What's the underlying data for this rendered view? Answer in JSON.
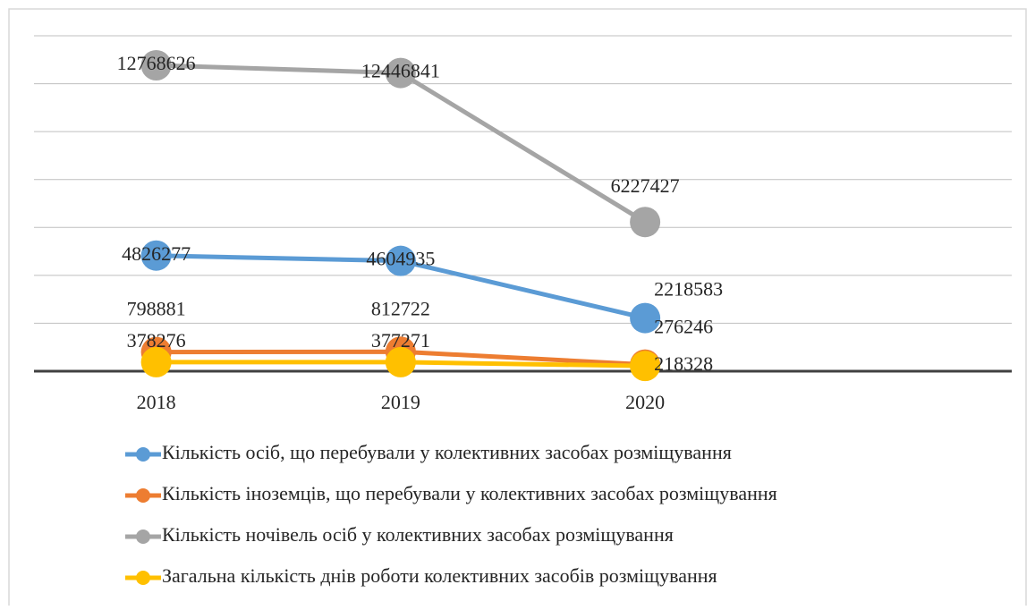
{
  "chart_data": {
    "type": "line",
    "categories": [
      "2018",
      "2019",
      "2020",
      null
    ],
    "series": [
      {
        "name": "Кількість осіб, що перебували у колективних засобах розміщування",
        "color": "#5b9bd5",
        "values": [
          4826277,
          4604935,
          2218583,
          null
        ]
      },
      {
        "name": "Кількість іноземців, що перебували у колективних засобах розміщування",
        "color": "#ed7d31",
        "values": [
          798881,
          812722,
          276246,
          null
        ]
      },
      {
        "name": "Кількість ночівель осіб у колективних засобах розміщування",
        "color": "#a5a5a5",
        "values": [
          12768626,
          12446841,
          6227427,
          null
        ]
      },
      {
        "name": "Загальна кількість днів роботи колективних засобів розміщування",
        "color": "#ffc000",
        "values": [
          378276,
          377271,
          218328,
          null
        ]
      }
    ],
    "ylim": [
      0,
      14000000
    ],
    "yticks": [
      0,
      2000000,
      4000000,
      6000000,
      8000000,
      10000000,
      12000000,
      14000000
    ],
    "grid": true
  }
}
